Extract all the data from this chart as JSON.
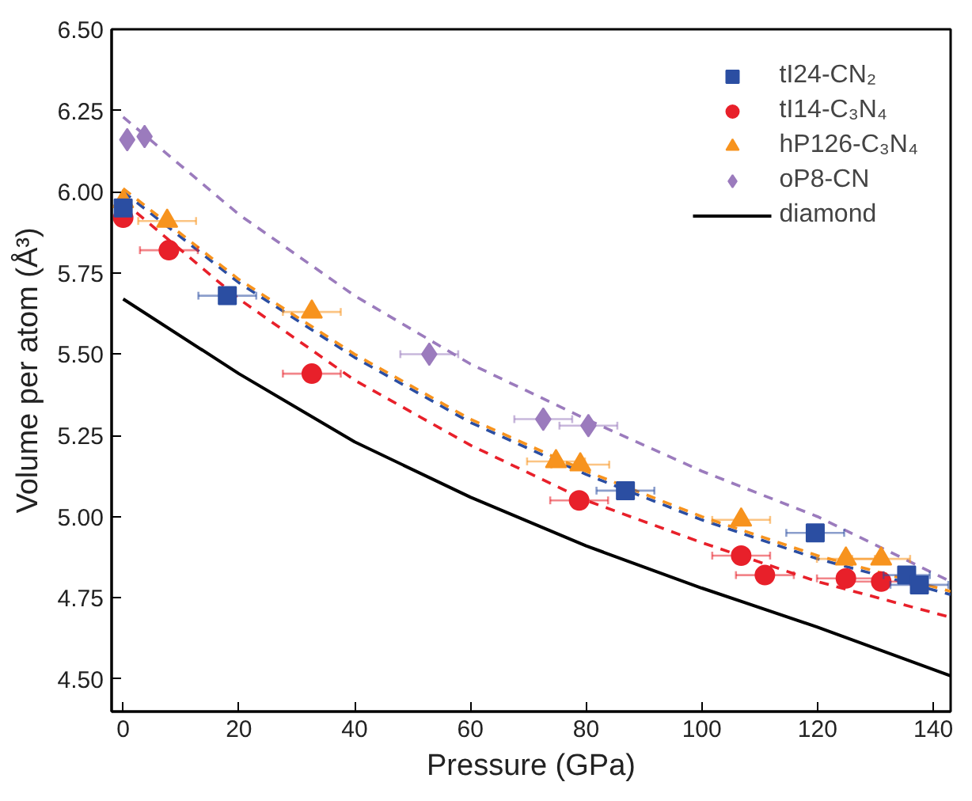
{
  "chart_data": {
    "type": "scatter",
    "xlabel": "Pressure (GPa)",
    "ylabel": "Volume per atom (Å³)",
    "xlim": [
      -2,
      143
    ],
    "ylim": [
      4.4,
      6.5
    ],
    "xticks": [
      0,
      20,
      40,
      60,
      80,
      100,
      120,
      140
    ],
    "yticks": [
      {
        "value": 4.5,
        "label": "4.50"
      },
      {
        "value": 4.75,
        "label": "4.75"
      },
      {
        "value": 5.0,
        "label": "5.00"
      },
      {
        "value": 5.25,
        "label": "5.25"
      },
      {
        "value": 5.5,
        "label": "5.50"
      },
      {
        "value": 5.75,
        "label": "5.75"
      },
      {
        "value": 6.0,
        "label": "6.00"
      },
      {
        "value": 6.25,
        "label": "6.25"
      },
      {
        "value": 6.5,
        "label": "6.50"
      }
    ],
    "grid": false,
    "legend": "top right",
    "series": [
      {
        "name": "tI24-CN₂",
        "marker": "square",
        "color": "#2b4ea2",
        "x": [
          0,
          18,
          86.8,
          119.6,
          135.4,
          137.6
        ],
        "values": [
          5.95,
          5.68,
          5.08,
          4.95,
          4.82,
          4.79
        ],
        "xerrors": [
          null,
          5,
          5,
          5,
          4,
          5
        ]
      },
      {
        "name": "tI14-C₃N₄",
        "marker": "circle",
        "color": "#e8202a",
        "x": [
          0,
          7.9,
          32.6,
          78.8,
          106.8,
          110.9,
          124.9,
          131
        ],
        "values": [
          5.92,
          5.82,
          5.44,
          5.05,
          4.88,
          4.82,
          4.81,
          4.8
        ],
        "xerrors": [
          null,
          5,
          5,
          5,
          5,
          5,
          5,
          5
        ]
      },
      {
        "name": "hP126-C₃N₄",
        "marker": "triangle",
        "color": "#f7931e",
        "x": [
          0,
          7.6,
          32.6,
          74.8,
          79,
          106.8,
          124.9,
          131
        ],
        "values": [
          5.97,
          5.91,
          5.63,
          5.17,
          5.16,
          4.99,
          4.87,
          4.87
        ],
        "xerrors": [
          null,
          5,
          5,
          5,
          5,
          5,
          5,
          5
        ]
      },
      {
        "name": "oP8-CN",
        "marker": "diamond",
        "color": "#9b7bbd",
        "x": [
          0.7,
          3.7,
          52.9,
          72.6,
          80.4
        ],
        "values": [
          6.16,
          6.17,
          5.5,
          5.3,
          5.28
        ],
        "xerrors": [
          null,
          null,
          5,
          5,
          5
        ]
      },
      {
        "name": "diamond",
        "type": "line",
        "line_style": "solid",
        "color": "#000000",
        "x": [
          0,
          20,
          40,
          60,
          80,
          100,
          120,
          143
        ],
        "values": [
          5.67,
          5.44,
          5.23,
          5.06,
          4.91,
          4.78,
          4.66,
          4.51
        ]
      },
      {
        "type": "line",
        "line_style": "dashed",
        "color": "#2b4ea2",
        "x": [
          0,
          20,
          40,
          60,
          80,
          100,
          120,
          143
        ],
        "values": [
          6.0,
          5.72,
          5.49,
          5.29,
          5.13,
          4.99,
          4.87,
          4.76
        ]
      },
      {
        "type": "line",
        "line_style": "dashed",
        "color": "#f7931e",
        "x": [
          0,
          20,
          40,
          60,
          80,
          100,
          120,
          143
        ],
        "values": [
          6.01,
          5.73,
          5.5,
          5.3,
          5.14,
          5.0,
          4.88,
          4.77
        ]
      },
      {
        "type": "line",
        "line_style": "dashed",
        "color": "#e8202a",
        "x": [
          0,
          20,
          40,
          60,
          80,
          100,
          120,
          143
        ],
        "values": [
          5.97,
          5.67,
          5.42,
          5.22,
          5.05,
          4.92,
          4.8,
          4.69
        ]
      },
      {
        "type": "line",
        "line_style": "dashed",
        "color": "#9b7bbd",
        "x": [
          0,
          20,
          40,
          60,
          80,
          100,
          120,
          143
        ],
        "values": [
          6.23,
          5.93,
          5.68,
          5.47,
          5.3,
          5.14,
          5.0,
          4.8
        ]
      }
    ]
  }
}
